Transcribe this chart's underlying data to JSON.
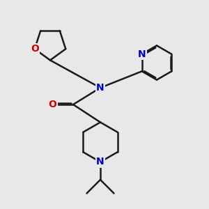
{
  "bg_color": "#e8e8e8",
  "bond_color": "#1a1a1a",
  "N_color": "#0000cc",
  "O_color": "#cc0000",
  "bond_width": 1.8,
  "figsize": [
    3.0,
    3.0
  ],
  "dpi": 100,
  "xlim": [
    0,
    10
  ],
  "ylim": [
    0,
    10
  ]
}
